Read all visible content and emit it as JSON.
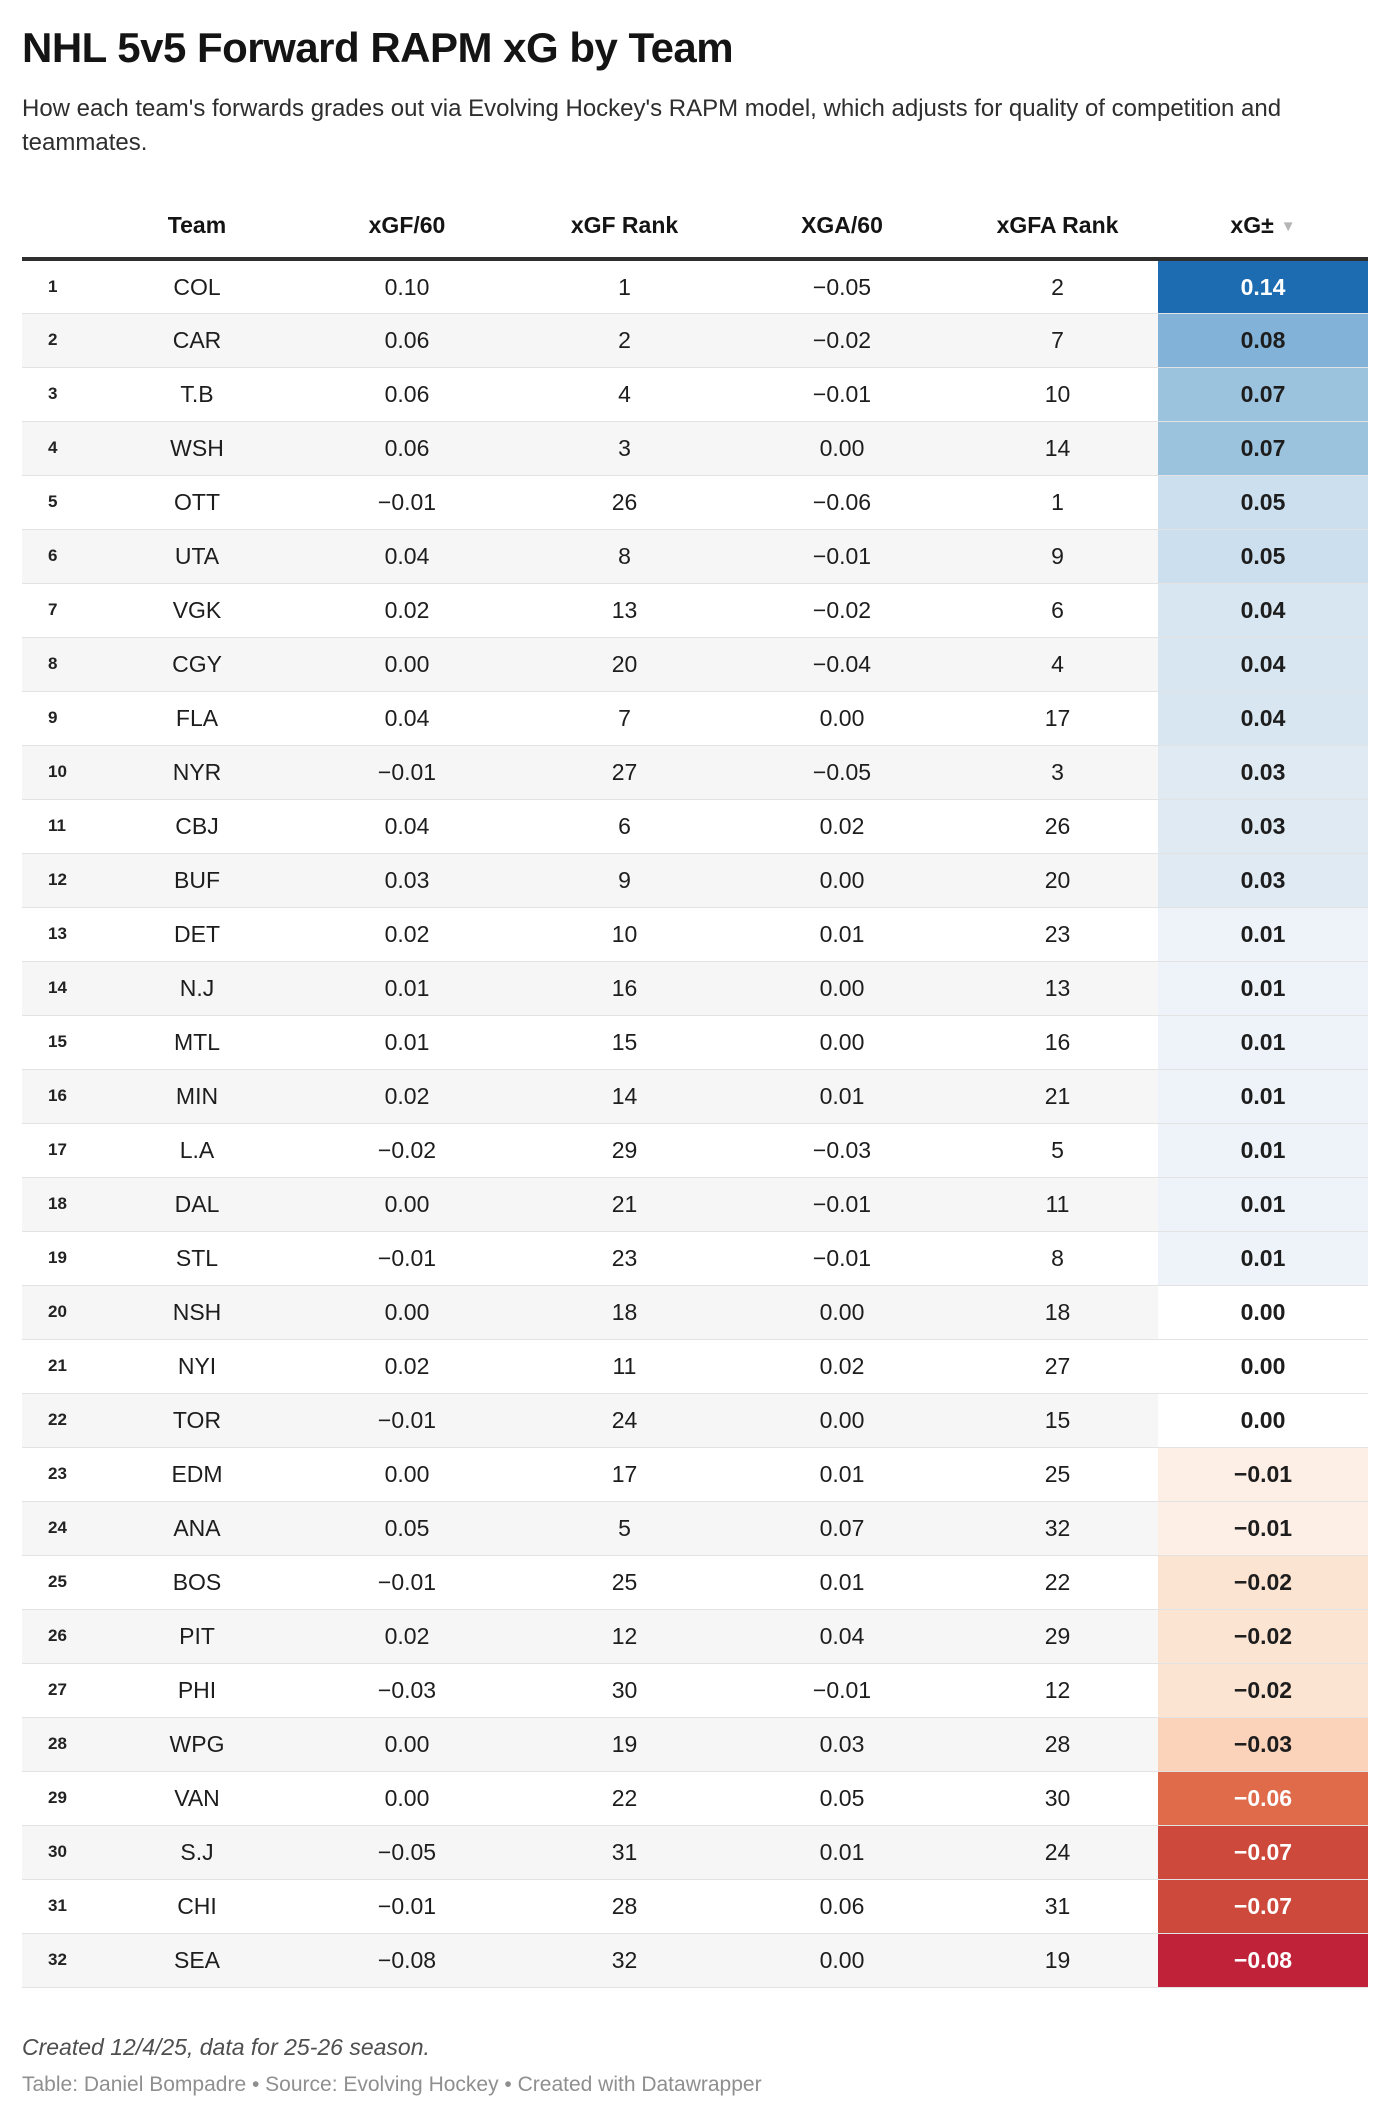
{
  "header": {
    "title": "NHL 5v5 Forward RAPM xG by Team",
    "description": "How each team's forwards grades out via Evolving Hockey's RAPM model, which adjusts for quality of competition and teammates."
  },
  "chart_data": {
    "type": "table",
    "title": "NHL 5v5 Forward RAPM xG by Team",
    "subtitle": "How each team's forwards grades out via Evolving Hockey's RAPM model, which adjusts for quality of competition and teammates.",
    "columns": [
      "Team",
      "xGF/60",
      "xGF Rank",
      "XGA/60",
      "xGFA Rank",
      "xG±"
    ],
    "sort": {
      "column": "xG±",
      "direction": "descending",
      "indicator": "▼"
    },
    "rows": [
      {
        "rank": "1",
        "team": "COL",
        "xgf60": "0.10",
        "xgf_rank": "1",
        "xga60": "−0.05",
        "xgfa_rank": "2",
        "xg_pm": "0.14",
        "xg_bg": "#1d6cb1",
        "xg_fg": "#ffffff"
      },
      {
        "rank": "2",
        "team": "CAR",
        "xgf60": "0.06",
        "xgf_rank": "2",
        "xga60": "−0.02",
        "xgfa_rank": "7",
        "xg_pm": "0.08",
        "xg_bg": "#82b2d7",
        "xg_fg": "#1d1d1d"
      },
      {
        "rank": "3",
        "team": "T.B",
        "xgf60": "0.06",
        "xgf_rank": "4",
        "xga60": "−0.01",
        "xgfa_rank": "10",
        "xg_pm": "0.07",
        "xg_bg": "#9cc3de",
        "xg_fg": "#1d1d1d"
      },
      {
        "rank": "4",
        "team": "WSH",
        "xgf60": "0.06",
        "xgf_rank": "3",
        "xga60": "0.00",
        "xgfa_rank": "14",
        "xg_pm": "0.07",
        "xg_bg": "#9cc3de",
        "xg_fg": "#1d1d1d"
      },
      {
        "rank": "5",
        "team": "OTT",
        "xgf60": "−0.01",
        "xgf_rank": "26",
        "xga60": "−0.06",
        "xgfa_rank": "1",
        "xg_pm": "0.05",
        "xg_bg": "#cbdfee",
        "xg_fg": "#1d1d1d"
      },
      {
        "rank": "6",
        "team": "UTA",
        "xgf60": "0.04",
        "xgf_rank": "8",
        "xga60": "−0.01",
        "xgfa_rank": "9",
        "xg_pm": "0.05",
        "xg_bg": "#cbdfee",
        "xg_fg": "#1d1d1d"
      },
      {
        "rank": "7",
        "team": "VGK",
        "xgf60": "0.02",
        "xgf_rank": "13",
        "xga60": "−0.02",
        "xgfa_rank": "6",
        "xg_pm": "0.04",
        "xg_bg": "#d7e6f1",
        "xg_fg": "#1d1d1d"
      },
      {
        "rank": "8",
        "team": "CGY",
        "xgf60": "0.00",
        "xgf_rank": "20",
        "xga60": "−0.04",
        "xgfa_rank": "4",
        "xg_pm": "0.04",
        "xg_bg": "#d7e6f1",
        "xg_fg": "#1d1d1d"
      },
      {
        "rank": "9",
        "team": "FLA",
        "xgf60": "0.04",
        "xgf_rank": "7",
        "xga60": "0.00",
        "xgfa_rank": "17",
        "xg_pm": "0.04",
        "xg_bg": "#d7e6f1",
        "xg_fg": "#1d1d1d"
      },
      {
        "rank": "10",
        "team": "NYR",
        "xgf60": "−0.01",
        "xgf_rank": "27",
        "xga60": "−0.05",
        "xgfa_rank": "3",
        "xg_pm": "0.03",
        "xg_bg": "#dfeaf3",
        "xg_fg": "#1d1d1d"
      },
      {
        "rank": "11",
        "team": "CBJ",
        "xgf60": "0.04",
        "xgf_rank": "6",
        "xga60": "0.02",
        "xgfa_rank": "26",
        "xg_pm": "0.03",
        "xg_bg": "#dfeaf3",
        "xg_fg": "#1d1d1d"
      },
      {
        "rank": "12",
        "team": "BUF",
        "xgf60": "0.03",
        "xgf_rank": "9",
        "xga60": "0.00",
        "xgfa_rank": "20",
        "xg_pm": "0.03",
        "xg_bg": "#dfeaf3",
        "xg_fg": "#1d1d1d"
      },
      {
        "rank": "13",
        "team": "DET",
        "xgf60": "0.02",
        "xgf_rank": "10",
        "xga60": "0.01",
        "xgfa_rank": "23",
        "xg_pm": "0.01",
        "xg_bg": "#edf3f9",
        "xg_fg": "#1d1d1d"
      },
      {
        "rank": "14",
        "team": "N.J",
        "xgf60": "0.01",
        "xgf_rank": "16",
        "xga60": "0.00",
        "xgfa_rank": "13",
        "xg_pm": "0.01",
        "xg_bg": "#edf3f9",
        "xg_fg": "#1d1d1d"
      },
      {
        "rank": "15",
        "team": "MTL",
        "xgf60": "0.01",
        "xgf_rank": "15",
        "xga60": "0.00",
        "xgfa_rank": "16",
        "xg_pm": "0.01",
        "xg_bg": "#edf3f9",
        "xg_fg": "#1d1d1d"
      },
      {
        "rank": "16",
        "team": "MIN",
        "xgf60": "0.02",
        "xgf_rank": "14",
        "xga60": "0.01",
        "xgfa_rank": "21",
        "xg_pm": "0.01",
        "xg_bg": "#edf3f9",
        "xg_fg": "#1d1d1d"
      },
      {
        "rank": "17",
        "team": "L.A",
        "xgf60": "−0.02",
        "xgf_rank": "29",
        "xga60": "−0.03",
        "xgfa_rank": "5",
        "xg_pm": "0.01",
        "xg_bg": "#edf3f9",
        "xg_fg": "#1d1d1d"
      },
      {
        "rank": "18",
        "team": "DAL",
        "xgf60": "0.00",
        "xgf_rank": "21",
        "xga60": "−0.01",
        "xgfa_rank": "11",
        "xg_pm": "0.01",
        "xg_bg": "#edf3f9",
        "xg_fg": "#1d1d1d"
      },
      {
        "rank": "19",
        "team": "STL",
        "xgf60": "−0.01",
        "xgf_rank": "23",
        "xga60": "−0.01",
        "xgfa_rank": "8",
        "xg_pm": "0.01",
        "xg_bg": "#edf3f9",
        "xg_fg": "#1d1d1d"
      },
      {
        "rank": "20",
        "team": "NSH",
        "xgf60": "0.00",
        "xgf_rank": "18",
        "xga60": "0.00",
        "xgfa_rank": "18",
        "xg_pm": "0.00",
        "xg_bg": "#ffffff",
        "xg_fg": "#1d1d1d"
      },
      {
        "rank": "21",
        "team": "NYI",
        "xgf60": "0.02",
        "xgf_rank": "11",
        "xga60": "0.02",
        "xgfa_rank": "27",
        "xg_pm": "0.00",
        "xg_bg": "#ffffff",
        "xg_fg": "#1d1d1d"
      },
      {
        "rank": "22",
        "team": "TOR",
        "xgf60": "−0.01",
        "xgf_rank": "24",
        "xga60": "0.00",
        "xgfa_rank": "15",
        "xg_pm": "0.00",
        "xg_bg": "#ffffff",
        "xg_fg": "#1d1d1d"
      },
      {
        "rank": "23",
        "team": "EDM",
        "xgf60": "0.00",
        "xgf_rank": "17",
        "xga60": "0.01",
        "xgfa_rank": "25",
        "xg_pm": "−0.01",
        "xg_bg": "#fdefe5",
        "xg_fg": "#1d1d1d"
      },
      {
        "rank": "24",
        "team": "ANA",
        "xgf60": "0.05",
        "xgf_rank": "5",
        "xga60": "0.07",
        "xgfa_rank": "32",
        "xg_pm": "−0.01",
        "xg_bg": "#fdefe5",
        "xg_fg": "#1d1d1d"
      },
      {
        "rank": "25",
        "team": "BOS",
        "xgf60": "−0.01",
        "xgf_rank": "25",
        "xga60": "0.01",
        "xgfa_rank": "22",
        "xg_pm": "−0.02",
        "xg_bg": "#fce4d3",
        "xg_fg": "#1d1d1d"
      },
      {
        "rank": "26",
        "team": "PIT",
        "xgf60": "0.02",
        "xgf_rank": "12",
        "xga60": "0.04",
        "xgfa_rank": "29",
        "xg_pm": "−0.02",
        "xg_bg": "#fce4d3",
        "xg_fg": "#1d1d1d"
      },
      {
        "rank": "27",
        "team": "PHI",
        "xgf60": "−0.03",
        "xgf_rank": "30",
        "xga60": "−0.01",
        "xgfa_rank": "12",
        "xg_pm": "−0.02",
        "xg_bg": "#fce4d3",
        "xg_fg": "#1d1d1d"
      },
      {
        "rank": "28",
        "team": "WPG",
        "xgf60": "0.00",
        "xgf_rank": "19",
        "xga60": "0.03",
        "xgfa_rank": "28",
        "xg_pm": "−0.03",
        "xg_bg": "#fbd2ba",
        "xg_fg": "#1d1d1d"
      },
      {
        "rank": "29",
        "team": "VAN",
        "xgf60": "0.00",
        "xgf_rank": "22",
        "xga60": "0.05",
        "xgfa_rank": "30",
        "xg_pm": "−0.06",
        "xg_bg": "#df6b4b",
        "xg_fg": "#ffffff"
      },
      {
        "rank": "30",
        "team": "S.J",
        "xgf60": "−0.05",
        "xgf_rank": "31",
        "xga60": "0.01",
        "xgfa_rank": "24",
        "xg_pm": "−0.07",
        "xg_bg": "#cc493b",
        "xg_fg": "#ffffff"
      },
      {
        "rank": "31",
        "team": "CHI",
        "xgf60": "−0.01",
        "xgf_rank": "28",
        "xga60": "0.06",
        "xgfa_rank": "31",
        "xg_pm": "−0.07",
        "xg_bg": "#cc493b",
        "xg_fg": "#ffffff"
      },
      {
        "rank": "32",
        "team": "SEA",
        "xgf60": "−0.08",
        "xgf_rank": "32",
        "xga60": "0.00",
        "xgfa_rank": "19",
        "xg_pm": "−0.08",
        "xg_bg": "#bf2239",
        "xg_fg": "#ffffff"
      }
    ]
  },
  "footer": {
    "note": "Created 12/4/25, data for 25-26 season.",
    "byline": "Table: Daniel Bompadre • Source: Evolving Hockey • Created with Datawrapper"
  },
  "colors": {
    "header_rule": "#2f2f2f",
    "zebra_row": "#f6f6f6",
    "row_divider": "#e3e3e3",
    "scale_positive_max": "#1d6cb1",
    "scale_negative_max": "#bf2239"
  }
}
